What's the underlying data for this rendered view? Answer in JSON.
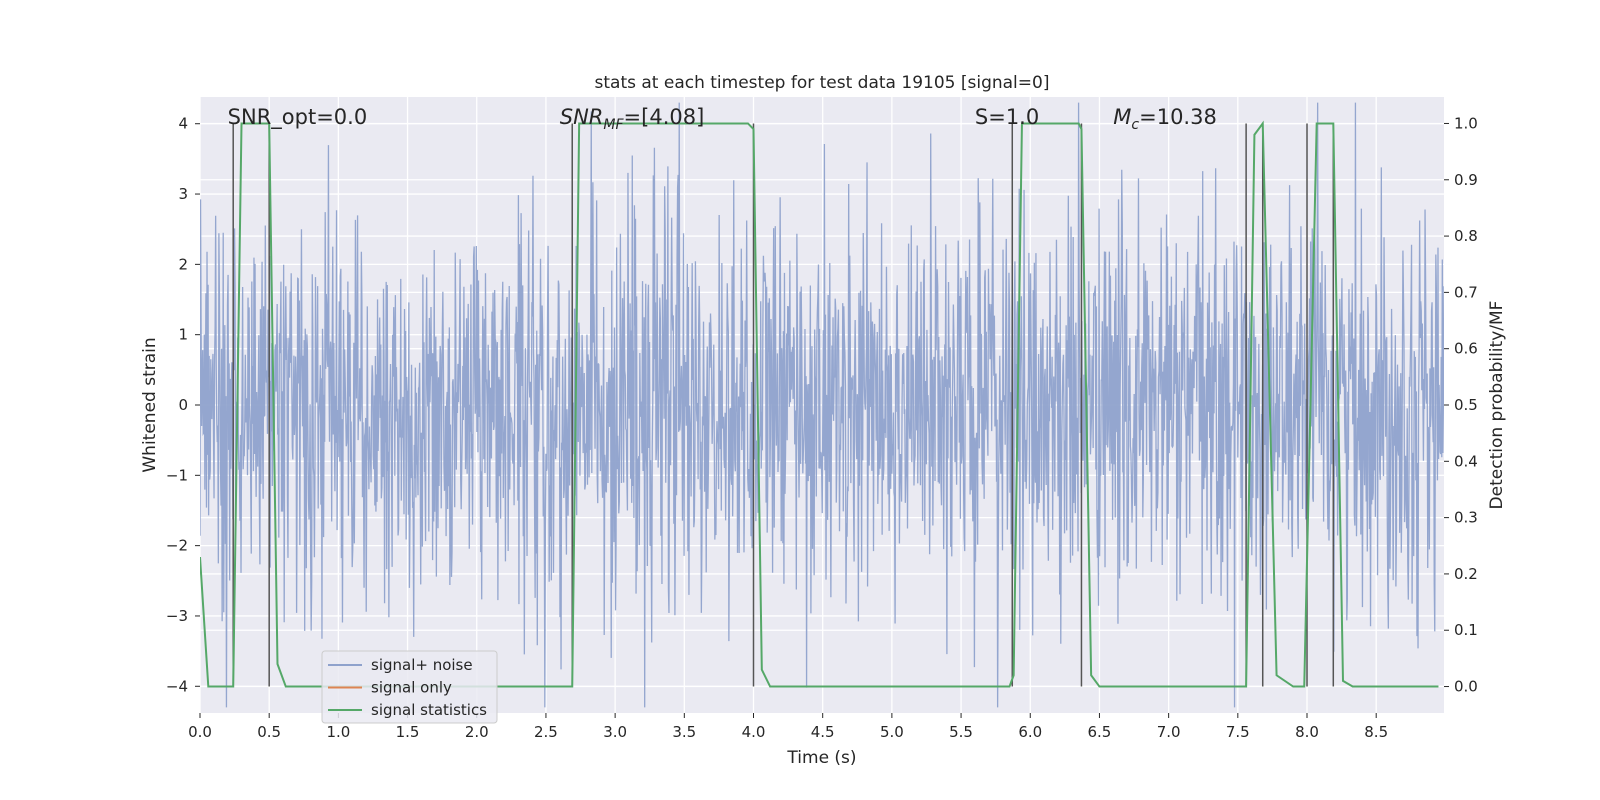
{
  "chart_data": {
    "type": "line",
    "title": "stats at each timestep for test data 19105 [signal=0]",
    "xlabel": "Time (s)",
    "ylabel_left": "Whitened strain",
    "ylabel_right": "Detection probability/MF",
    "xlim": [
      0.0,
      8.99
    ],
    "ylim_left": [
      -4.38,
      4.38
    ],
    "ylim_right": [
      -0.047,
      1.047
    ],
    "x_ticks": [
      0.0,
      0.5,
      1.0,
      1.5,
      2.0,
      2.5,
      3.0,
      3.5,
      4.0,
      4.5,
      5.0,
      5.5,
      6.0,
      6.5,
      7.0,
      7.5,
      8.0,
      8.5
    ],
    "x_tick_labels": [
      "0.0",
      "0.5",
      "1.0",
      "1.5",
      "2.0",
      "2.5",
      "3.0",
      "3.5",
      "4.0",
      "4.5",
      "5.0",
      "5.5",
      "6.0",
      "6.5",
      "7.0",
      "7.5",
      "8.0",
      "8.5"
    ],
    "y_left_ticks": [
      -4,
      -3,
      -2,
      -1,
      0,
      1,
      2,
      3,
      4
    ],
    "y_left_tick_labels": [
      "−4",
      "−3",
      "−2",
      "−1",
      "0",
      "1",
      "2",
      "3",
      "4"
    ],
    "y_right_ticks": [
      0.0,
      0.1,
      0.2,
      0.3,
      0.4,
      0.5,
      0.6,
      0.7,
      0.8,
      0.9,
      1.0
    ],
    "y_right_tick_labels": [
      "0.0",
      "0.1",
      "0.2",
      "0.3",
      "0.4",
      "0.5",
      "0.6",
      "0.7",
      "0.8",
      "0.9",
      "1.0"
    ],
    "grid": true,
    "legend_position": "lower-left",
    "annotations": [
      {
        "x": 0.2,
        "text": "SNR_opt=0.0"
      },
      {
        "x": 2.6,
        "text": "SNR_MF=[4.08]"
      },
      {
        "x": 5.6,
        "text": "S=1.0"
      },
      {
        "x": 6.6,
        "text": "M_c=10.38"
      }
    ],
    "vertical_markers": [
      0.24,
      0.5,
      2.69,
      4.0,
      5.87,
      6.37,
      7.56,
      7.68,
      8.0,
      8.19
    ],
    "series": [
      {
        "name": "signal+ noise",
        "color": "#8fa2cc",
        "axis": "left",
        "description_kind": "dense whitened noise",
        "noise_std": 1.0,
        "time_step": 0.0039
      },
      {
        "name": "signal only",
        "color": "#dd8452",
        "axis": "left",
        "x": [],
        "y": []
      },
      {
        "name": "signal statistics",
        "color": "#55a868",
        "axis": "right",
        "x": [
          0.0,
          0.06,
          0.24,
          0.3,
          0.5,
          0.56,
          0.62,
          2.4,
          2.69,
          2.74,
          3.96,
          4.0,
          4.06,
          4.12,
          5.85,
          5.88,
          5.94,
          6.35,
          6.37,
          6.44,
          6.5,
          7.56,
          7.62,
          7.68,
          7.78,
          7.9,
          7.98,
          8.07,
          8.19,
          8.26,
          8.33,
          8.95
        ],
        "y": [
          0.23,
          0.0,
          0.0,
          1.0,
          1.0,
          0.04,
          0.0,
          0.0,
          0.0,
          1.0,
          1.0,
          0.99,
          0.03,
          0.0,
          0.0,
          0.02,
          1.0,
          1.0,
          0.99,
          0.02,
          0.0,
          0.0,
          0.98,
          1.0,
          0.02,
          0.0,
          0.0,
          1.0,
          1.0,
          0.01,
          0.0,
          0.0
        ]
      }
    ]
  }
}
